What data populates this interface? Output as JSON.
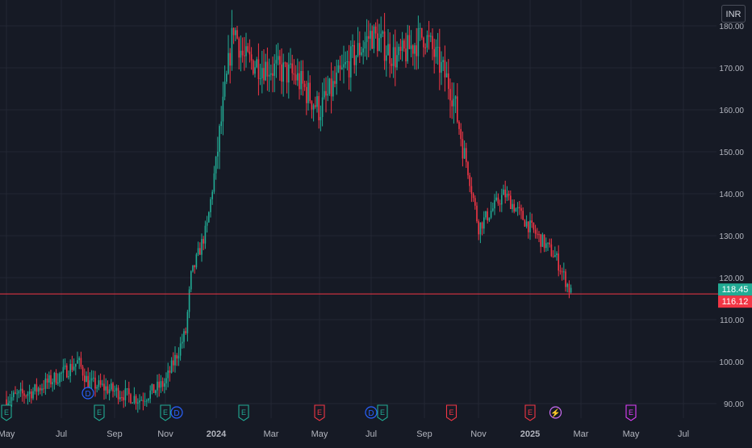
{
  "currency_label": "INR",
  "colors": {
    "background": "#161a25",
    "grid": "#232734",
    "up": "#22ab94",
    "down": "#f23645",
    "axis_text": "#b2b5be",
    "price_line": "#f23645"
  },
  "chart_data": {
    "type": "candlestick",
    "title": "",
    "y_axis": {
      "ticks": [
        "90.00",
        "100.00",
        "110.00",
        "120.00",
        "130.00",
        "140.00",
        "150.00",
        "160.00",
        "170.00",
        "180.00"
      ],
      "range": [
        88,
        184
      ]
    },
    "x_axis": {
      "ticks": [
        "May",
        "Jul",
        "Sep",
        "Nov",
        "2024",
        "Mar",
        "May",
        "Jul",
        "Sep",
        "Nov",
        "2025",
        "Mar",
        "May",
        "Jul"
      ]
    },
    "grid": true,
    "price_labels": [
      {
        "value": "118.45",
        "kind": "up"
      },
      {
        "value": "116.12",
        "kind": "down"
      }
    ],
    "current_price": 116.12,
    "series_close_path": [
      {
        "date": "2023-05",
        "close": 91
      },
      {
        "date": "2023-06",
        "close": 93
      },
      {
        "date": "2023-07",
        "close": 97
      },
      {
        "date": "2023-07-20",
        "close": 100
      },
      {
        "date": "2023-08",
        "close": 95
      },
      {
        "date": "2023-09",
        "close": 93
      },
      {
        "date": "2023-10",
        "close": 91
      },
      {
        "date": "2023-11",
        "close": 95
      },
      {
        "date": "2023-11-25",
        "close": 107
      },
      {
        "date": "2023-12",
        "close": 120
      },
      {
        "date": "2023-12-20",
        "close": 132
      },
      {
        "date": "2024-01",
        "close": 148
      },
      {
        "date": "2024-01-20",
        "close": 180
      },
      {
        "date": "2024-02",
        "close": 172
      },
      {
        "date": "2024-03",
        "close": 170
      },
      {
        "date": "2024-04",
        "close": 168
      },
      {
        "date": "2024-05",
        "close": 160
      },
      {
        "date": "2024-06",
        "close": 170
      },
      {
        "date": "2024-07",
        "close": 178
      },
      {
        "date": "2024-08",
        "close": 172
      },
      {
        "date": "2024-09",
        "close": 178
      },
      {
        "date": "2024-10",
        "close": 165
      },
      {
        "date": "2024-10-20",
        "close": 145
      },
      {
        "date": "2024-11",
        "close": 132
      },
      {
        "date": "2024-12",
        "close": 140
      },
      {
        "date": "2025-01",
        "close": 132
      },
      {
        "date": "2025-02",
        "close": 125
      },
      {
        "date": "2025-02-20",
        "close": 116
      }
    ],
    "events": [
      {
        "date": "2023-05",
        "label": "E",
        "kind": "earnings-past"
      },
      {
        "date": "2023-08",
        "label": "D",
        "kind": "dividend"
      },
      {
        "date": "2023-08",
        "label": "E",
        "kind": "earnings-past"
      },
      {
        "date": "2023-11",
        "label": "E",
        "kind": "earnings-past"
      },
      {
        "date": "2023-11",
        "label": "D",
        "kind": "dividend"
      },
      {
        "date": "2024-02",
        "label": "E",
        "kind": "earnings-past"
      },
      {
        "date": "2024-05",
        "label": "E",
        "kind": "earnings-miss"
      },
      {
        "date": "2024-07",
        "label": "D",
        "kind": "dividend"
      },
      {
        "date": "2024-07",
        "label": "E",
        "kind": "earnings-past"
      },
      {
        "date": "2024-10",
        "label": "E",
        "kind": "earnings-miss"
      },
      {
        "date": "2025-01",
        "label": "E",
        "kind": "earnings-miss"
      },
      {
        "date": "2025-02",
        "label": "⚡",
        "kind": "split"
      },
      {
        "date": "2025-05",
        "label": "E",
        "kind": "earnings-future"
      }
    ]
  }
}
